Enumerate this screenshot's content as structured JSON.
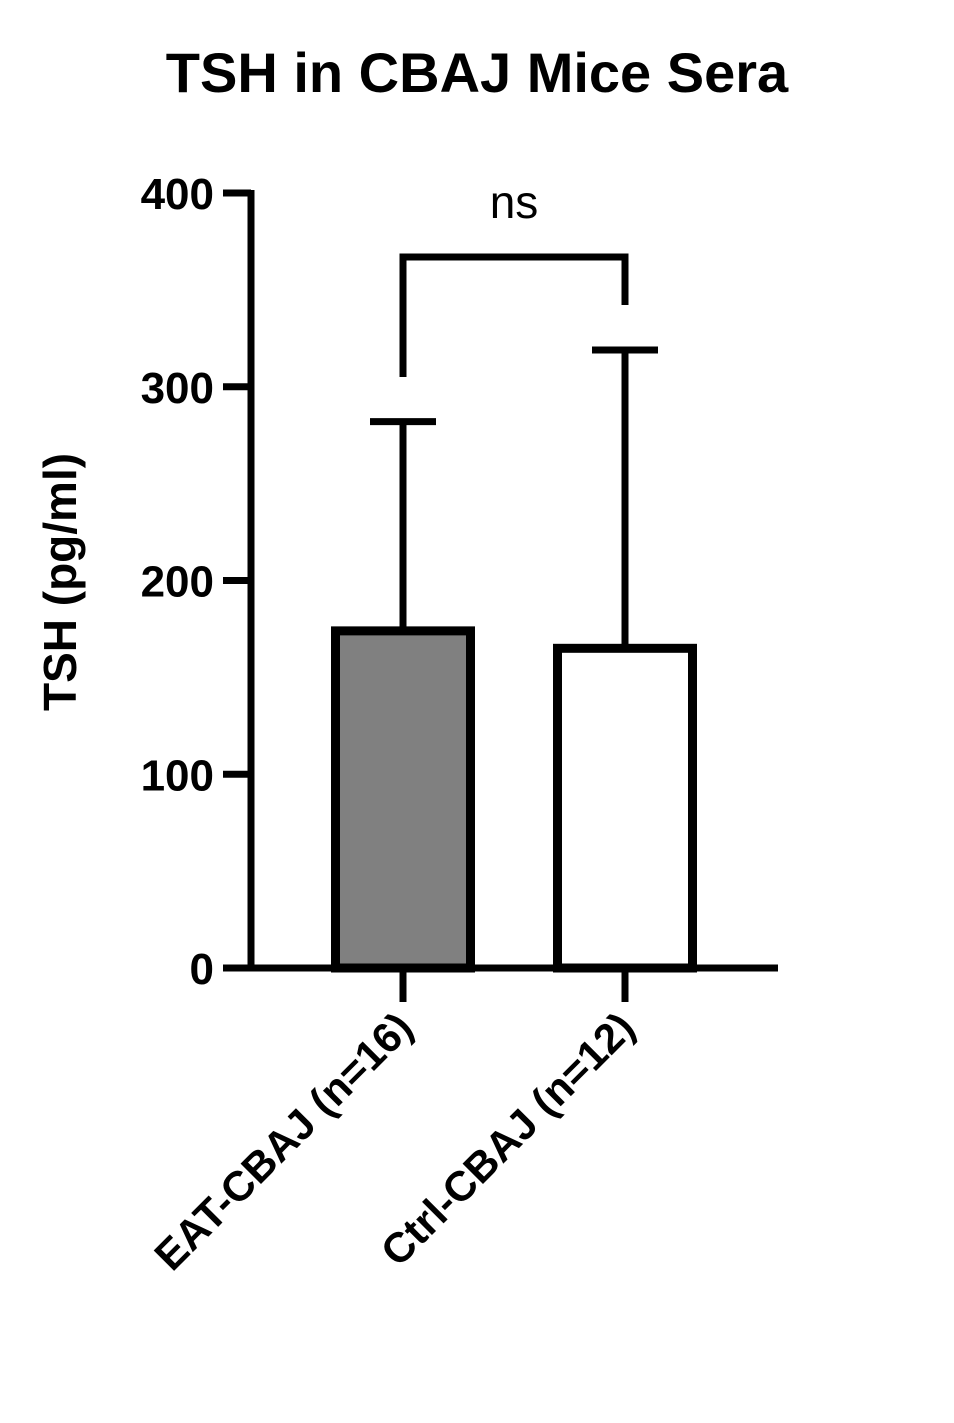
{
  "chart_data": {
    "type": "bar",
    "title": "TSH in CBAJ Mice Sera",
    "ylabel": "TSH (pg/ml)",
    "xlabel": "",
    "categories": [
      "EAT-CBAJ (n=16)",
      "Ctrl-CBAJ (n=12)"
    ],
    "values": [
      174,
      165
    ],
    "error_upper": [
      282,
      319
    ],
    "ylim": [
      0,
      400
    ],
    "yticks": [
      0,
      100,
      200,
      300,
      400
    ],
    "bar_colors": [
      "#808080",
      "#ffffff"
    ],
    "edge_color": "#000000",
    "significance": {
      "label": "ns",
      "between": [
        "EAT-CBAJ (n=16)",
        "Ctrl-CBAJ (n=12)"
      ]
    },
    "grid": false,
    "legend": "none"
  }
}
